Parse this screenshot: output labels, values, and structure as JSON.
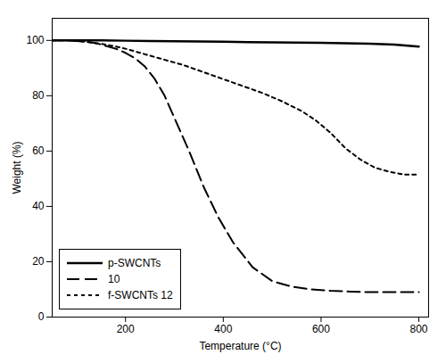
{
  "chart_data": {
    "type": "line",
    "title": "",
    "xlabel": "Temperature (°C)",
    "ylabel": "Weight (%)",
    "xlim": [
      50,
      820
    ],
    "ylim": [
      0,
      108
    ],
    "xticks": [
      200,
      400,
      600,
      800
    ],
    "yticks": [
      0,
      20,
      40,
      60,
      80,
      100
    ],
    "grid": false,
    "legend": "lower left",
    "series": [
      {
        "name": "p-SWCNTs",
        "color": "#000000",
        "line_style": "solid",
        "x": [
          50,
          100,
          150,
          200,
          250,
          300,
          350,
          400,
          450,
          500,
          550,
          600,
          650,
          700,
          750,
          800
        ],
        "values": [
          100.0,
          100.0,
          100.0,
          99.9,
          99.8,
          99.7,
          99.6,
          99.5,
          99.4,
          99.3,
          99.2,
          99.1,
          99.0,
          98.8,
          98.5,
          97.8
        ]
      },
      {
        "name": "10",
        "color": "#000000",
        "line_style": "dashed",
        "x": [
          50,
          80,
          100,
          120,
          140,
          160,
          180,
          200,
          220,
          240,
          260,
          280,
          300,
          330,
          360,
          390,
          420,
          460,
          500,
          540,
          580,
          620,
          660,
          700,
          750,
          800
        ],
        "values": [
          100.0,
          100.0,
          99.8,
          99.5,
          99.0,
          98.0,
          97.0,
          95.5,
          93.5,
          90.5,
          86.0,
          80.0,
          72.0,
          60.0,
          47.0,
          36.0,
          27.0,
          18.0,
          13.0,
          11.0,
          10.0,
          9.5,
          9.2,
          9.0,
          9.0,
          9.0
        ]
      },
      {
        "name": "f-SWCNTs 12",
        "color": "#000000",
        "line_style": "dotted",
        "x": [
          50,
          80,
          100,
          120,
          140,
          160,
          180,
          200,
          230,
          260,
          290,
          320,
          360,
          400,
          440,
          480,
          520,
          560,
          590,
          620,
          650,
          680,
          710,
          740,
          770,
          800
        ],
        "values": [
          100.0,
          100.0,
          99.8,
          99.5,
          99.0,
          98.5,
          97.8,
          97.0,
          95.5,
          94.0,
          92.5,
          91.0,
          88.5,
          86.0,
          83.5,
          81.0,
          78.0,
          74.5,
          71.0,
          66.5,
          61.0,
          57.0,
          54.0,
          52.5,
          51.5,
          51.5
        ]
      }
    ]
  }
}
